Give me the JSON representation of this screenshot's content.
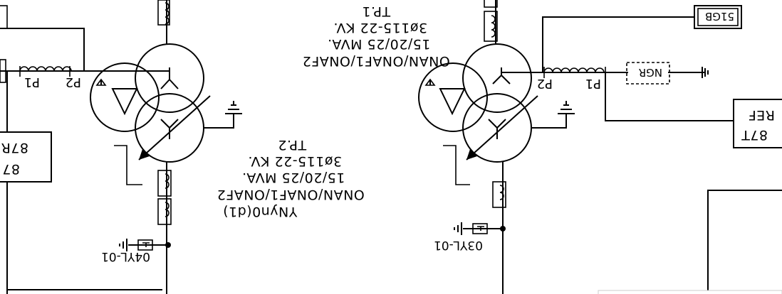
{
  "colors": {
    "line": "#000000",
    "background": "#ffffff",
    "panel_edge": "#e6e6e6"
  },
  "transformers": {
    "tp1": {
      "name": "TP.1",
      "voltage": "3ø115-22 KV.",
      "rating": "15/20/25 MVA.",
      "cooling": "ONAN/ONAF1/ONAF2",
      "p1": "P1",
      "p2": "P2",
      "ngr": "NGR",
      "relay_box": "51GB",
      "arrester": "03YL-01"
    },
    "tp2": {
      "name": "TP.2",
      "voltage": "3ø115-22 KV.",
      "rating": "15/20/25 MVA.",
      "cooling": "ONAN/ONAF1/ONAF2",
      "vector_group": "YNyn0(d1)",
      "p1": "P1",
      "p2": "P2",
      "relay_box": "87R\n87",
      "arrester": "04YL-01"
    }
  },
  "edge_labels": {
    "right_box": "REF\n87T"
  }
}
